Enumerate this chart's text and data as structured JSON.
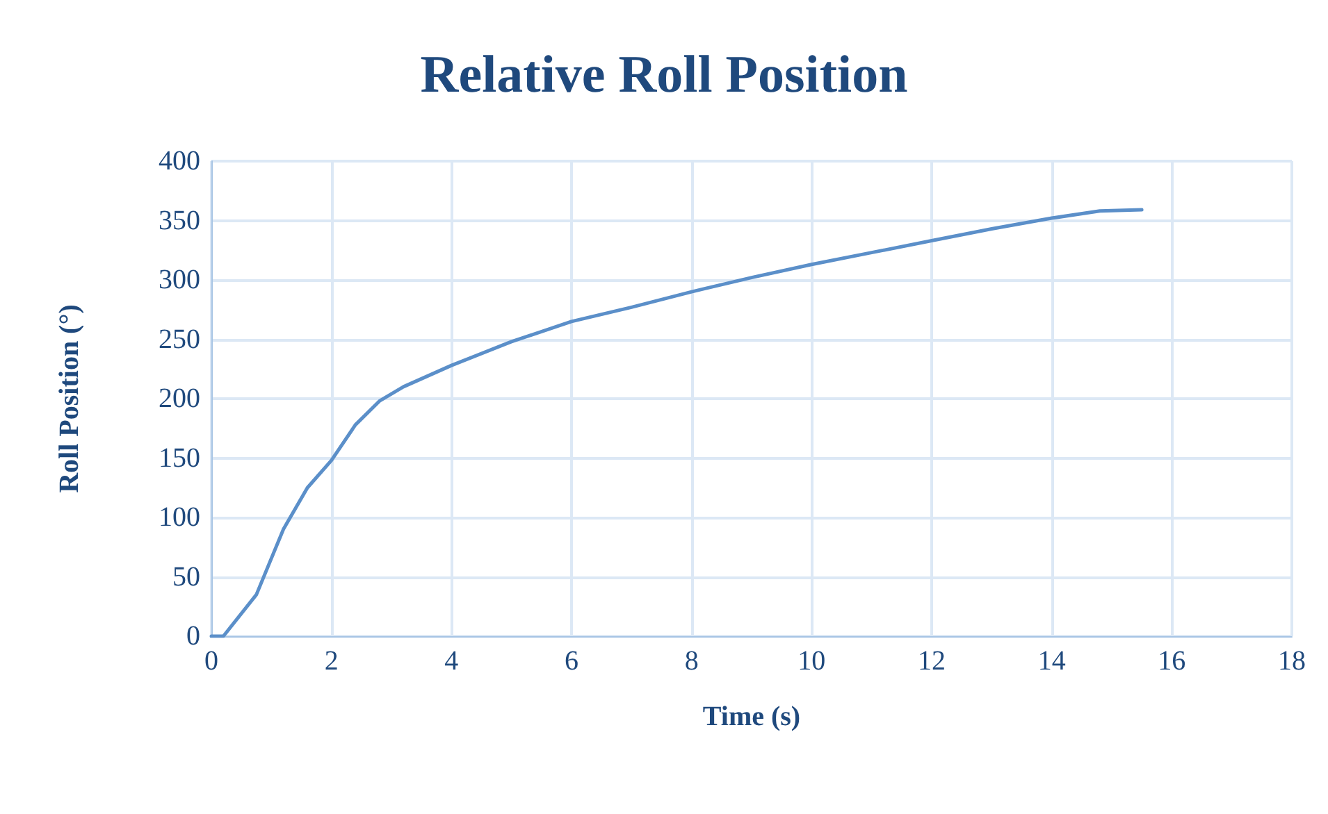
{
  "chart_data": {
    "type": "line",
    "title": "Relative Roll Position",
    "xlabel": "Time (s)",
    "ylabel": "Roll Position (°)",
    "x": [
      0,
      0.2,
      0.75,
      1.2,
      1.6,
      2,
      2.4,
      2.8,
      3.2,
      4,
      5,
      6,
      7,
      8,
      9,
      10,
      11,
      12,
      13,
      14,
      14.8,
      15.5
    ],
    "series": [
      {
        "color": "#5b8fc9",
        "values": [
          0,
          0,
          35,
          90,
          125,
          148,
          178,
          198,
          210,
          228,
          248,
          265,
          277,
          290,
          302,
          313,
          323,
          333,
          343,
          352,
          358,
          359
        ]
      }
    ],
    "xlim": [
      0,
      18
    ],
    "xticks": [
      0,
      2,
      4,
      6,
      8,
      10,
      12,
      14,
      16,
      18
    ],
    "ylim": [
      0,
      400
    ],
    "yticks": [
      0,
      50,
      100,
      150,
      200,
      250,
      300,
      350,
      400
    ],
    "grid": true,
    "marker": "none",
    "line_style": "solid"
  }
}
